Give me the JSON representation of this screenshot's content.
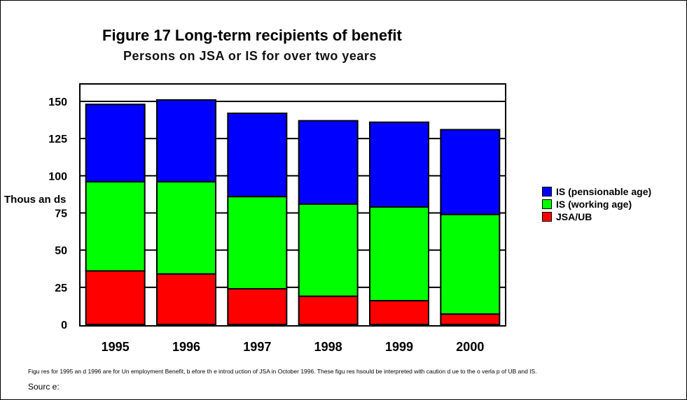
{
  "footnote": "Figu res for 1995 an d 1996 are for Un employment Benefit, b efore th e introd uction of JSA in October 1996. These figu res hsould be interpreted with caution d ue to the o verla p of UB and IS.",
  "source": "Sourc e:",
  "chart_data": {
    "type": "bar",
    "stacked": true,
    "title": "Figure 17 Long-term recipients of benefit",
    "subtitle": "Persons on JSA or IS for over two years",
    "ylabel": "Thous an ds",
    "xlabel": "",
    "ylim": [
      0,
      150
    ],
    "yticks": [
      0,
      25,
      50,
      75,
      100,
      125,
      150
    ],
    "grid": true,
    "legend_position": "right",
    "categories": [
      "1995",
      "1996",
      "1997",
      "1998",
      "1999",
      "2000"
    ],
    "series": [
      {
        "name": "JSA/UB",
        "color": "#ff0000",
        "values": [
          36,
          34,
          24,
          19,
          16,
          7
        ]
      },
      {
        "name": "IS (working age)",
        "color": "#00ff00",
        "values": [
          60,
          62,
          62,
          62,
          63,
          67
        ]
      },
      {
        "name": "IS (pensionable age)",
        "color": "#0000ff",
        "values": [
          52,
          55,
          56,
          56,
          57,
          57
        ]
      }
    ]
  }
}
